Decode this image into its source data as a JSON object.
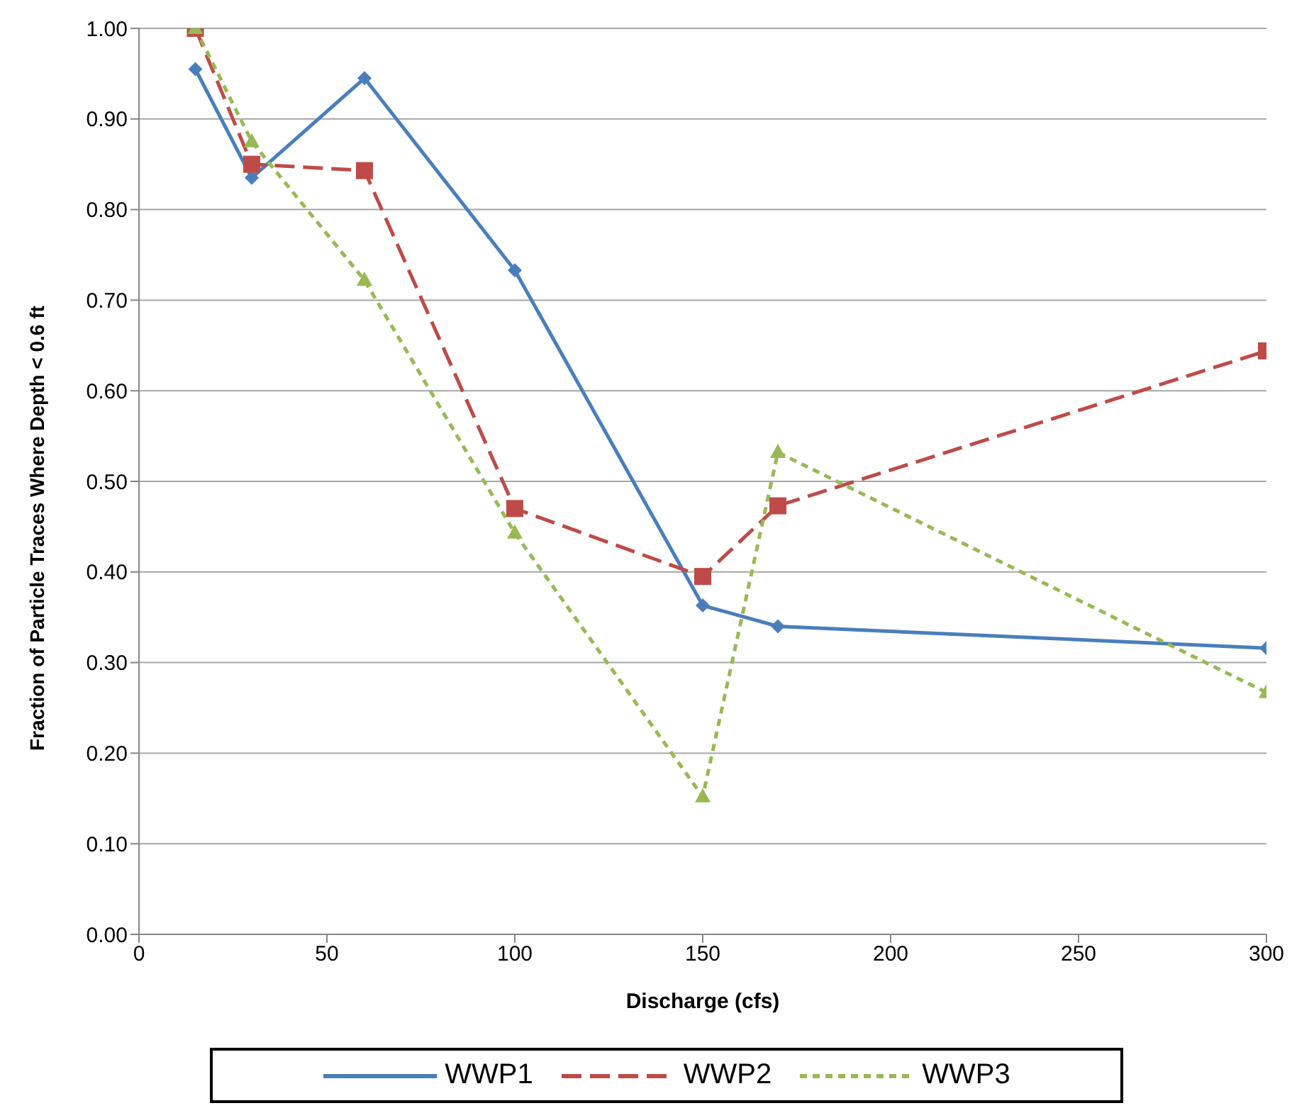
{
  "chart_data": {
    "type": "line",
    "xlabel": "Discharge (cfs)",
    "ylabel": "Fraction of Particle Traces Where Depth < 0.6 ft",
    "x": [
      15,
      30,
      60,
      100,
      150,
      170,
      300
    ],
    "series": [
      {
        "name": "WWP1",
        "color": "#4a7ebb",
        "values": [
          0.955,
          0.835,
          0.945,
          0.733,
          0.363,
          0.34,
          0.316
        ],
        "marker": "diamond",
        "line_style": "solid"
      },
      {
        "name": "WWP2",
        "color": "#be4b48",
        "values": [
          1.0,
          0.85,
          0.843,
          0.47,
          0.395,
          0.473,
          0.644
        ],
        "marker": "square",
        "line_style": "dashed"
      },
      {
        "name": "WWP3",
        "color": "#98b954",
        "values": [
          1.0,
          0.875,
          0.722,
          0.443,
          0.152,
          0.532,
          0.267
        ],
        "marker": "triangle",
        "line_style": "dotted"
      }
    ],
    "xlim": [
      0,
      300
    ],
    "xticks": [
      0,
      50,
      100,
      150,
      200,
      250,
      300
    ],
    "ylim": [
      0,
      1
    ],
    "yticks": [
      {
        "value": 0,
        "label": "0.00"
      },
      {
        "value": 0.1,
        "label": "0.10"
      },
      {
        "value": 0.2,
        "label": "0.20"
      },
      {
        "value": 0.3,
        "label": "0.30"
      },
      {
        "value": 0.4,
        "label": "0.40"
      },
      {
        "value": 0.5,
        "label": "0.50"
      },
      {
        "value": 0.6,
        "label": "0.60"
      },
      {
        "value": 0.7,
        "label": "0.70"
      },
      {
        "value": 0.8,
        "label": "0.80"
      },
      {
        "value": 0.9,
        "label": "0.90"
      },
      {
        "value": 1,
        "label": "1.00"
      }
    ],
    "grid": "y",
    "legend": "bottom"
  }
}
